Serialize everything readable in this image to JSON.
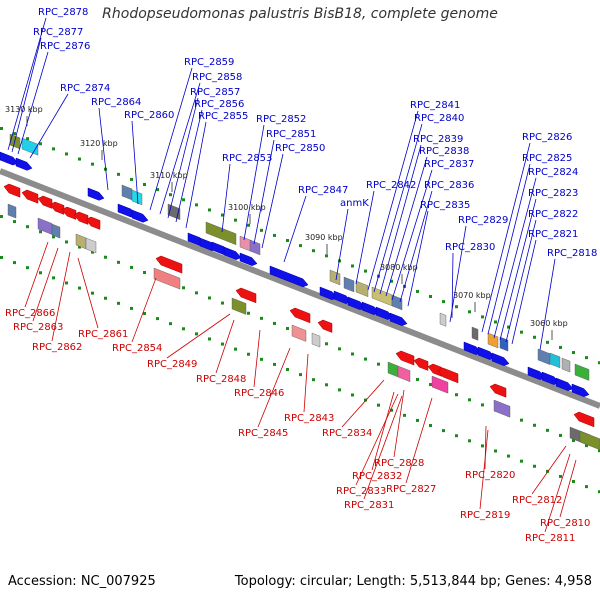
{
  "title": "Rhodopseudomonas palustris BisB18, complete genome",
  "footer": {
    "accession": "Accession: NC_007925",
    "summary": "Topology: circular; Length: 5,513,844 bp; Genes: 4,958"
  },
  "colors": {
    "forward_label": "#0000cc",
    "reverse_label": "#cc0000",
    "forward_gene": "#1010e8",
    "reverse_gene": "#ee1111",
    "backbone": "#8c8c8c",
    "tick": "#1a8a1a"
  },
  "ticks": [
    "3130 kbp",
    "3120 kbp",
    "3110 kbp",
    "3100 kbp",
    "3090 kbp",
    "3080 kbp",
    "3070 kbp",
    "3060 kbp"
  ],
  "forward_labels": [
    "RPC_2878",
    "RPC_2877",
    "RPC_2876",
    "RPC_2874",
    "RPC_2864",
    "RPC_2860",
    "RPC_2859",
    "RPC_2858",
    "RPC_2857",
    "RPC_2856",
    "RPC_2855",
    "RPC_2853",
    "RPC_2852",
    "RPC_2851",
    "RPC_2850",
    "RPC_2847",
    "anmK",
    "RPC_2842",
    "RPC_2841",
    "RPC_2840",
    "RPC_2839",
    "RPC_2838",
    "RPC_2837",
    "RPC_2836",
    "RPC_2835",
    "RPC_2829",
    "RPC_2830",
    "RPC_2826",
    "RPC_2825",
    "RPC_2824",
    "RPC_2823",
    "RPC_2822",
    "RPC_2821",
    "RPC_2818"
  ],
  "reverse_labels": [
    "RPC_2866",
    "RPC_2863",
    "RPC_2862",
    "RPC_2861",
    "RPC_2854",
    "RPC_2849",
    "RPC_2848",
    "RPC_2846",
    "RPC_2845",
    "RPC_2843",
    "RPC_2834",
    "RPC_2828",
    "RPC_2832",
    "RPC_2833",
    "RPC_2831",
    "RPC_2827",
    "RPC_2820",
    "RPC_2819",
    "RPC_2812",
    "RPC_2810",
    "RPC_2811"
  ]
}
